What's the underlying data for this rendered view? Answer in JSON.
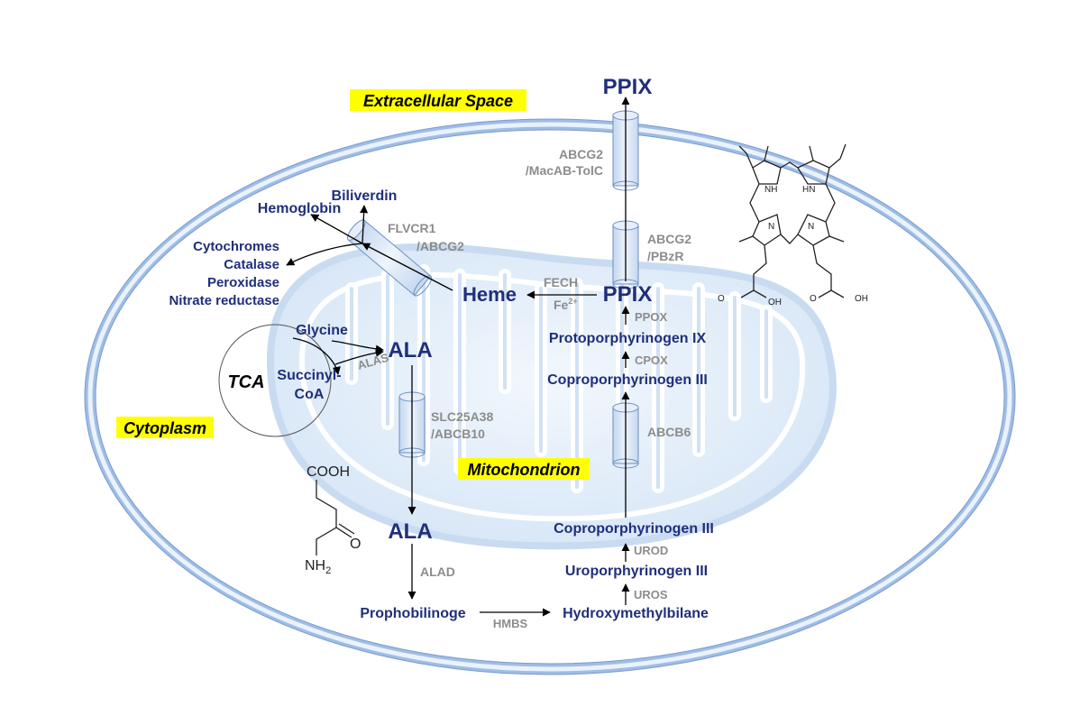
{
  "compartments": {
    "extracellular": "Extracellular Space",
    "cytoplasm": "Cytoplasm",
    "mitochondrion": "Mitochondrion",
    "tca": "TCA"
  },
  "metabolites": {
    "ppix_out": "PPIX",
    "biliverdin": "Biliverdin",
    "hemoglobin": "Hemoglobin",
    "cytochromes": "Cytochromes",
    "catalase": "Catalase",
    "peroxidase": "Peroxidase",
    "nitrate_reductase": "Nitrate reductase",
    "heme": "Heme",
    "ppix_mito": "PPIX",
    "glycine": "Glycine",
    "ala_mito": "ALA",
    "succinyl_1": "Succinyl-",
    "succinyl_2": "CoA",
    "protoporphyrinogen": "Protoporphyrinogen IX",
    "coproporphyrinogen_mito": "Coproporphyrinogen III",
    "ala_cyto": "ALA",
    "coproporphyrinogen_cyto": "Coproporphyrinogen III",
    "uroporphyrinogen": "Uroporphyrinogen III",
    "prophobilinogen": "Prophobilinoge",
    "hydroxymethylbilane": "Hydroxymethylbilane"
  },
  "enzymes": {
    "abcg2_macab_1": "ABCG2",
    "abcg2_macab_2": "/MacAB-TolC",
    "flvcr1_1": "FLVCR1",
    "flvcr1_2": "/ABCG2",
    "abcg2_pbzr_1": "ABCG2",
    "abcg2_pbzr_2": "/PBzR",
    "fech": "FECH",
    "fe_base": "Fe",
    "fe_sup": "2+",
    "ppox": "PPOX",
    "cpox": "CPOX",
    "alas": "ALAS",
    "slc_1": "SLC25A38",
    "slc_2": "/ABCB10",
    "abcb6": "ABCB6",
    "alad": "ALAD",
    "urod": "UROD",
    "uros": "UROS",
    "hmbs": "HMBS"
  },
  "structure_labels": {
    "cooh": "COOH",
    "o": "O",
    "nh2_base": "NH",
    "nh2_sub": "2",
    "nh_1": "NH",
    "nh_2": "HN",
    "n_1": "N",
    "n_2": "N",
    "o_1": "O",
    "oh_1": "OH",
    "o_2": "O",
    "oh_2": "OH"
  },
  "colors": {
    "metabolite": "#1f2f7a",
    "enzyme": "#8c8c8c",
    "highlight": "#ffff00",
    "membrane": "#9fbde6",
    "mitochondrion": "#d8e8f8"
  }
}
